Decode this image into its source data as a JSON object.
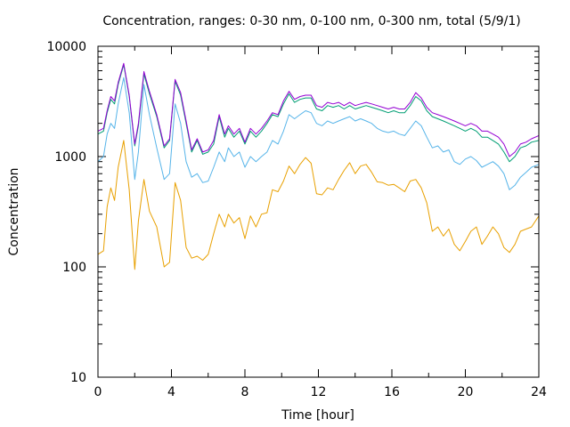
{
  "chart_data": {
    "type": "line",
    "title": "Concentration, ranges: 0-30 nm, 0-100 nm, 0-300 nm, total (5/9/1)",
    "xlabel": "Time [hour]",
    "ylabel": "Concentration",
    "xlim": [
      0,
      24
    ],
    "ylim": [
      10,
      10000
    ],
    "yscale": "log",
    "grid": false,
    "xticks": [
      0,
      4,
      8,
      12,
      16,
      20,
      24
    ],
    "xminor": [
      2,
      6,
      10,
      14,
      18,
      22
    ],
    "yticks": [
      10,
      100,
      1000,
      10000
    ],
    "series": [
      {
        "color": "#e8a000",
        "x": [
          0,
          0.3,
          0.5,
          0.7,
          0.9,
          1.1,
          1.4,
          1.7,
          2.0,
          2.2,
          2.5,
          2.8,
          3.2,
          3.6,
          3.9,
          4.2,
          4.5,
          4.8,
          5.1,
          5.4,
          5.7,
          6.0,
          6.3,
          6.6,
          6.9,
          7.1,
          7.4,
          7.7,
          8.0,
          8.3,
          8.6,
          8.9,
          9.2,
          9.5,
          9.8,
          10.1,
          10.4,
          10.7,
          11.0,
          11.3,
          11.6,
          11.9,
          12.2,
          12.5,
          12.8,
          13.1,
          13.4,
          13.7,
          14.0,
          14.3,
          14.6,
          14.9,
          15.2,
          15.5,
          15.8,
          16.1,
          16.4,
          16.7,
          17.0,
          17.3,
          17.6,
          17.9,
          18.2,
          18.5,
          18.8,
          19.1,
          19.4,
          19.7,
          20.0,
          20.3,
          20.6,
          20.9,
          21.2,
          21.5,
          21.8,
          22.1,
          22.4,
          22.7,
          23.0,
          23.3,
          23.6,
          24.0
        ],
        "values": [
          130,
          140,
          350,
          520,
          400,
          800,
          1400,
          500,
          95,
          260,
          620,
          320,
          230,
          100,
          110,
          580,
          400,
          150,
          120,
          125,
          115,
          130,
          200,
          300,
          230,
          300,
          250,
          280,
          180,
          290,
          230,
          300,
          310,
          500,
          480,
          600,
          820,
          700,
          850,
          980,
          870,
          460,
          450,
          520,
          500,
          620,
          750,
          880,
          700,
          820,
          850,
          720,
          590,
          580,
          550,
          560,
          520,
          480,
          600,
          620,
          520,
          380,
          210,
          230,
          190,
          220,
          160,
          140,
          170,
          210,
          230,
          160,
          190,
          230,
          200,
          150,
          135,
          160,
          210,
          220,
          230,
          290
        ]
      },
      {
        "color": "#56b4e9",
        "x": [
          0,
          0.3,
          0.5,
          0.7,
          0.9,
          1.1,
          1.4,
          1.7,
          2.0,
          2.2,
          2.5,
          2.8,
          3.2,
          3.6,
          3.9,
          4.2,
          4.5,
          4.8,
          5.1,
          5.4,
          5.7,
          6.0,
          6.3,
          6.6,
          6.9,
          7.1,
          7.4,
          7.7,
          8.0,
          8.3,
          8.6,
          8.9,
          9.2,
          9.5,
          9.8,
          10.1,
          10.4,
          10.7,
          11.0,
          11.3,
          11.6,
          11.9,
          12.2,
          12.5,
          12.8,
          13.1,
          13.4,
          13.7,
          14.0,
          14.3,
          14.6,
          14.9,
          15.2,
          15.5,
          15.8,
          16.1,
          16.4,
          16.7,
          17.0,
          17.3,
          17.6,
          17.9,
          18.2,
          18.5,
          18.8,
          19.1,
          19.4,
          19.7,
          20.0,
          20.3,
          20.6,
          20.9,
          21.2,
          21.5,
          21.8,
          22.1,
          22.4,
          22.7,
          23.0,
          23.3,
          23.6,
          24.0
        ],
        "values": [
          900,
          1000,
          1600,
          2000,
          1800,
          3000,
          5200,
          2500,
          620,
          1100,
          4500,
          2400,
          1200,
          620,
          700,
          3000,
          2000,
          900,
          650,
          700,
          580,
          600,
          800,
          1100,
          900,
          1200,
          1000,
          1100,
          800,
          1000,
          900,
          1000,
          1100,
          1400,
          1300,
          1700,
          2400,
          2200,
          2400,
          2600,
          2500,
          2000,
          1900,
          2100,
          2000,
          2100,
          2200,
          2300,
          2100,
          2200,
          2100,
          2000,
          1800,
          1700,
          1650,
          1700,
          1600,
          1550,
          1800,
          2100,
          1900,
          1500,
          1200,
          1250,
          1100,
          1150,
          900,
          850,
          950,
          1000,
          920,
          800,
          850,
          900,
          820,
          700,
          500,
          550,
          650,
          720,
          800,
          850
        ]
      },
      {
        "color": "#009e73",
        "x": [
          0,
          0.3,
          0.5,
          0.7,
          0.9,
          1.1,
          1.4,
          1.7,
          2.0,
          2.2,
          2.5,
          2.8,
          3.2,
          3.6,
          3.9,
          4.2,
          4.5,
          4.8,
          5.1,
          5.4,
          5.7,
          6.0,
          6.3,
          6.6,
          6.9,
          7.1,
          7.4,
          7.7,
          8.0,
          8.3,
          8.6,
          8.9,
          9.2,
          9.5,
          9.8,
          10.1,
          10.4,
          10.7,
          11.0,
          11.3,
          11.6,
          11.9,
          12.2,
          12.5,
          12.8,
          13.1,
          13.4,
          13.7,
          14.0,
          14.3,
          14.6,
          14.9,
          15.2,
          15.5,
          15.8,
          16.1,
          16.4,
          16.7,
          17.0,
          17.3,
          17.6,
          17.9,
          18.2,
          18.5,
          18.8,
          19.1,
          19.4,
          19.7,
          20.0,
          20.3,
          20.6,
          20.9,
          21.2,
          21.5,
          21.8,
          22.1,
          22.4,
          22.7,
          23.0,
          23.3,
          23.6,
          24.0
        ],
        "values": [
          1600,
          1700,
          2500,
          3300,
          3000,
          4500,
          6800,
          3500,
          1250,
          1900,
          5600,
          3700,
          2300,
          1200,
          1400,
          4800,
          3600,
          2000,
          1100,
          1400,
          1050,
          1100,
          1300,
          2300,
          1500,
          1800,
          1500,
          1700,
          1300,
          1700,
          1500,
          1700,
          2000,
          2400,
          2300,
          3000,
          3700,
          3100,
          3300,
          3400,
          3400,
          2700,
          2600,
          2900,
          2800,
          2900,
          2700,
          2900,
          2700,
          2800,
          2900,
          2800,
          2700,
          2600,
          2500,
          2600,
          2500,
          2500,
          2900,
          3500,
          3200,
          2600,
          2300,
          2200,
          2100,
          2000,
          1900,
          1800,
          1700,
          1800,
          1700,
          1500,
          1500,
          1400,
          1300,
          1100,
          900,
          1000,
          1200,
          1250,
          1350,
          1400
        ]
      },
      {
        "color": "#9400d3",
        "x": [
          0,
          0.3,
          0.5,
          0.7,
          0.9,
          1.1,
          1.4,
          1.7,
          2.0,
          2.2,
          2.5,
          2.8,
          3.2,
          3.6,
          3.9,
          4.2,
          4.5,
          4.8,
          5.1,
          5.4,
          5.7,
          6.0,
          6.3,
          6.6,
          6.9,
          7.1,
          7.4,
          7.7,
          8.0,
          8.3,
          8.6,
          8.9,
          9.2,
          9.5,
          9.8,
          10.1,
          10.4,
          10.7,
          11.0,
          11.3,
          11.6,
          11.9,
          12.2,
          12.5,
          12.8,
          13.1,
          13.4,
          13.7,
          14.0,
          14.3,
          14.6,
          14.9,
          15.2,
          15.5,
          15.8,
          16.1,
          16.4,
          16.7,
          17.0,
          17.3,
          17.6,
          17.9,
          18.2,
          18.5,
          18.8,
          19.1,
          19.4,
          19.7,
          20.0,
          20.3,
          20.6,
          20.9,
          21.2,
          21.5,
          21.8,
          22.1,
          22.4,
          22.7,
          23.0,
          23.3,
          23.6,
          24.0
        ],
        "values": [
          1700,
          1800,
          2600,
          3500,
          3200,
          4700,
          7000,
          3600,
          1300,
          2000,
          5900,
          3900,
          2400,
          1250,
          1450,
          5000,
          3800,
          2100,
          1150,
          1450,
          1100,
          1150,
          1400,
          2400,
          1600,
          1900,
          1600,
          1800,
          1350,
          1800,
          1600,
          1800,
          2100,
          2500,
          2400,
          3200,
          3900,
          3300,
          3500,
          3600,
          3600,
          2900,
          2800,
          3100,
          3000,
          3100,
          2900,
          3100,
          2900,
          3000,
          3100,
          3000,
          2900,
          2800,
          2700,
          2800,
          2700,
          2700,
          3100,
          3800,
          3400,
          2800,
          2500,
          2400,
          2300,
          2200,
          2100,
          2000,
          1900,
          2000,
          1900,
          1700,
          1700,
          1600,
          1500,
          1300,
          1000,
          1100,
          1300,
          1350,
          1450,
          1550
        ]
      }
    ]
  }
}
